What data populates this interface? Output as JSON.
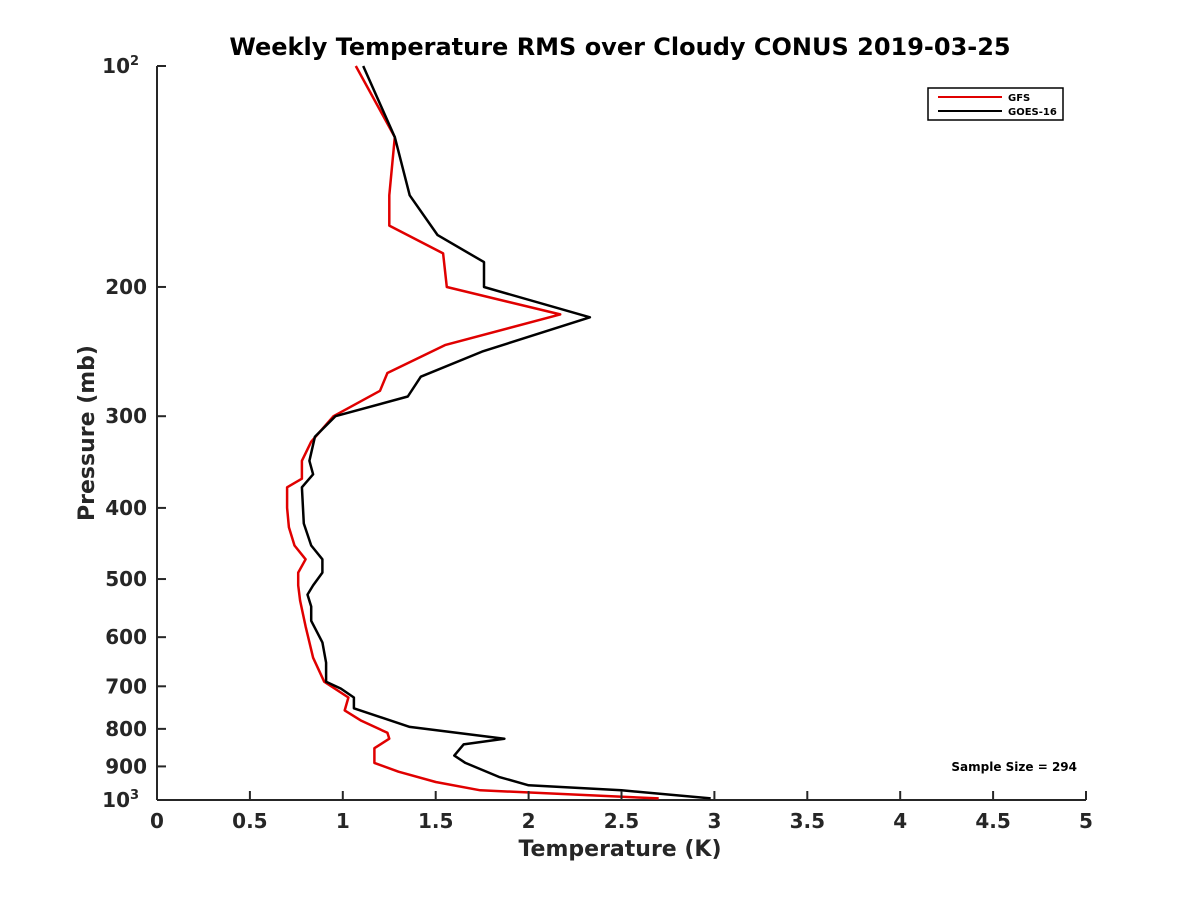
{
  "chart_data": {
    "type": "line",
    "title": "Weekly Temperature RMS over Cloudy CONUS 2019-03-25",
    "xlabel": "Temperature (K)",
    "ylabel": "Pressure (mb)",
    "xlim": [
      0,
      5
    ],
    "ylim": [
      100,
      1000
    ],
    "y_scale": "log",
    "y_reversed": true,
    "grid": false,
    "x_ticks": [
      {
        "value": 0,
        "label": "0"
      },
      {
        "value": 0.5,
        "label": "0.5"
      },
      {
        "value": 1,
        "label": "1"
      },
      {
        "value": 1.5,
        "label": "1.5"
      },
      {
        "value": 2,
        "label": "2"
      },
      {
        "value": 2.5,
        "label": "2.5"
      },
      {
        "value": 3,
        "label": "3"
      },
      {
        "value": 3.5,
        "label": "3.5"
      },
      {
        "value": 4,
        "label": "4"
      },
      {
        "value": 4.5,
        "label": "4.5"
      },
      {
        "value": 5,
        "label": "5"
      }
    ],
    "y_ticks": [
      {
        "value": 100,
        "label": "10",
        "sup": "2"
      },
      {
        "value": 200,
        "label": "200"
      },
      {
        "value": 300,
        "label": "300"
      },
      {
        "value": 400,
        "label": "400"
      },
      {
        "value": 500,
        "label": "500"
      },
      {
        "value": 600,
        "label": "600"
      },
      {
        "value": 700,
        "label": "700"
      },
      {
        "value": 800,
        "label": "800"
      },
      {
        "value": 900,
        "label": "900"
      },
      {
        "value": 1000,
        "label": "10",
        "sup": "3"
      }
    ],
    "legend_position": "top-right",
    "series": [
      {
        "name": "GFS",
        "color": "#e00000",
        "points": [
          [
            1.07,
            100
          ],
          [
            1.28,
            125
          ],
          [
            1.25,
            150
          ],
          [
            1.25,
            165
          ],
          [
            1.54,
            180
          ],
          [
            1.56,
            200
          ],
          [
            2.17,
            218
          ],
          [
            1.55,
            240
          ],
          [
            1.24,
            262
          ],
          [
            1.2,
            277
          ],
          [
            0.95,
            300
          ],
          [
            0.83,
            325
          ],
          [
            0.78,
            345
          ],
          [
            0.78,
            365
          ],
          [
            0.7,
            375
          ],
          [
            0.7,
            400
          ],
          [
            0.71,
            425
          ],
          [
            0.74,
            450
          ],
          [
            0.8,
            470
          ],
          [
            0.76,
            490
          ],
          [
            0.76,
            510
          ],
          [
            0.77,
            535
          ],
          [
            0.8,
            580
          ],
          [
            0.84,
            640
          ],
          [
            0.9,
            690
          ],
          [
            1.03,
            725
          ],
          [
            1.01,
            755
          ],
          [
            1.1,
            780
          ],
          [
            1.24,
            810
          ],
          [
            1.25,
            825
          ],
          [
            1.17,
            850
          ],
          [
            1.17,
            890
          ],
          [
            1.3,
            915
          ],
          [
            1.5,
            945
          ],
          [
            1.74,
            970
          ],
          [
            2.7,
            995
          ]
        ]
      },
      {
        "name": "GOES-16",
        "color": "#000000",
        "points": [
          [
            1.11,
            100
          ],
          [
            1.28,
            125
          ],
          [
            1.36,
            150
          ],
          [
            1.51,
            170
          ],
          [
            1.76,
            185
          ],
          [
            1.76,
            200
          ],
          [
            2.33,
            220
          ],
          [
            1.75,
            245
          ],
          [
            1.42,
            265
          ],
          [
            1.35,
            282
          ],
          [
            0.96,
            300
          ],
          [
            0.85,
            320
          ],
          [
            0.82,
            345
          ],
          [
            0.84,
            360
          ],
          [
            0.78,
            375
          ],
          [
            0.79,
            420
          ],
          [
            0.83,
            450
          ],
          [
            0.89,
            470
          ],
          [
            0.89,
            490
          ],
          [
            0.84,
            510
          ],
          [
            0.81,
            525
          ],
          [
            0.83,
            545
          ],
          [
            0.83,
            570
          ],
          [
            0.89,
            610
          ],
          [
            0.91,
            650
          ],
          [
            0.91,
            690
          ],
          [
            0.99,
            705
          ],
          [
            1.06,
            725
          ],
          [
            1.06,
            750
          ],
          [
            1.36,
            795
          ],
          [
            1.87,
            825
          ],
          [
            1.65,
            840
          ],
          [
            1.6,
            870
          ],
          [
            1.66,
            890
          ],
          [
            1.84,
            930
          ],
          [
            2.0,
            955
          ],
          [
            2.5,
            970
          ],
          [
            2.98,
            995
          ]
        ]
      }
    ],
    "annotation": "Sample Size = 294"
  }
}
